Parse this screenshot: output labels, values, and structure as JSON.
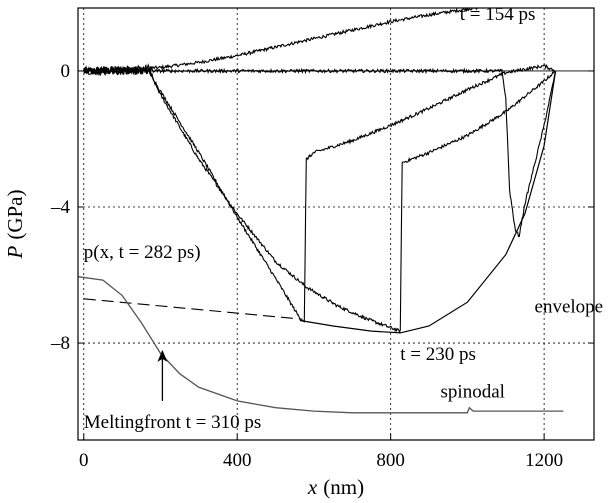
{
  "chart_data": {
    "type": "line",
    "xlabel": "x",
    "xlabel_unit": "(nm)",
    "ylabel": "P",
    "ylabel_unit": "(GPa)",
    "xlim": [
      -15,
      1330
    ],
    "ylim": [
      -10.85,
      1.85
    ],
    "xticks": [
      0,
      400,
      800,
      1200
    ],
    "yticks": [
      0,
      -4,
      -8
    ],
    "xtick_labels": [
      "0",
      "400",
      "800",
      "1200"
    ],
    "ytick_labels": [
      "0",
      "–4",
      "–8"
    ],
    "grid": true,
    "series": [
      {
        "name": "t = 154 ps",
        "style": "noisy",
        "x": [
          0,
          100,
          200,
          300,
          400,
          500,
          600,
          700,
          800,
          900,
          1000,
          1050
        ],
        "y": [
          0,
          0.05,
          0.1,
          0.25,
          0.45,
          0.7,
          0.95,
          1.2,
          1.45,
          1.65,
          1.82,
          1.9
        ]
      },
      {
        "name": "t = 230 ps",
        "style": "noisy",
        "x": [
          0,
          170,
          200,
          300,
          400,
          500,
          580,
          660,
          740,
          800,
          825,
          830,
          900,
          1000,
          1100,
          1200,
          1230
        ],
        "y": [
          0,
          0,
          -0.7,
          -2.6,
          -4.2,
          -5.6,
          -6.35,
          -6.9,
          -7.3,
          -7.55,
          -7.65,
          -2.7,
          -2.4,
          -1.9,
          -1.2,
          -0.3,
          0
        ]
      },
      {
        "name": "",
        "style": "noisy",
        "x": [
          0,
          170,
          200,
          300,
          400,
          500,
          565,
          575,
          580,
          600,
          700,
          800,
          900,
          1000,
          1100,
          1200,
          1230
        ],
        "y": [
          0,
          0,
          -0.6,
          -2.4,
          -4.3,
          -6.1,
          -7.3,
          -7.35,
          -2.6,
          -2.4,
          -2.05,
          -1.6,
          -1.1,
          -0.55,
          -0.05,
          0.15,
          0
        ]
      },
      {
        "name": "",
        "style": "noisy",
        "x": [
          0,
          400,
          800,
          1000,
          1090,
          1100,
          1110,
          1125,
          1135,
          1150,
          1200,
          1230
        ],
        "y": [
          0,
          0,
          0,
          0,
          0,
          -0.8,
          -3.5,
          -4.7,
          -4.85,
          -3.9,
          -1.6,
          0
        ]
      },
      {
        "name": "envelope",
        "style": "smooth",
        "x": [
          570,
          650,
          750,
          825,
          900,
          1000,
          1100,
          1150,
          1200,
          1230
        ],
        "y": [
          -7.35,
          -7.5,
          -7.65,
          -7.7,
          -7.5,
          -6.8,
          -5.4,
          -4.2,
          -2.2,
          0
        ]
      },
      {
        "name": "p(x, t = 282 ps)",
        "style": "solid-thin",
        "x": [
          0,
          570
        ],
        "y": [
          -6.7,
          -7.3
        ]
      },
      {
        "name": "",
        "style": "dashed",
        "x": [
          0,
          570
        ],
        "y": [
          -6.7,
          -7.3
        ]
      },
      {
        "name": "spinodal",
        "style": "solid-gray",
        "x": [
          -15,
          50,
          100,
          150,
          200,
          250,
          300,
          400,
          500,
          600,
          700,
          800,
          900,
          1000,
          1005,
          1015,
          1100,
          1250
        ],
        "y": [
          -6.05,
          -6.15,
          -6.6,
          -7.4,
          -8.3,
          -8.9,
          -9.3,
          -9.7,
          -9.9,
          -10.0,
          -10.05,
          -10.05,
          -10.05,
          -10.05,
          -9.9,
          -10.0,
          -10.0,
          -10.0
        ]
      }
    ],
    "annotations": [
      {
        "text": "t = 154 ps",
        "x": 980,
        "y": 1.5
      },
      {
        "text": "t = 230 ps",
        "x": 825,
        "y": -8.5
      },
      {
        "text": "envelope",
        "x": 1175,
        "y": -7.1
      },
      {
        "text": "spinodal",
        "x": 930,
        "y": -9.6
      },
      {
        "text": "p(x, t = 282 ps)",
        "x": 0,
        "y": -5.5
      },
      {
        "text": "Meltingfront t = 310 ps",
        "x": 0,
        "y": -10.5
      }
    ],
    "arrow": {
      "x": 205,
      "y_from": -9.7,
      "y_to": -8.2
    }
  }
}
